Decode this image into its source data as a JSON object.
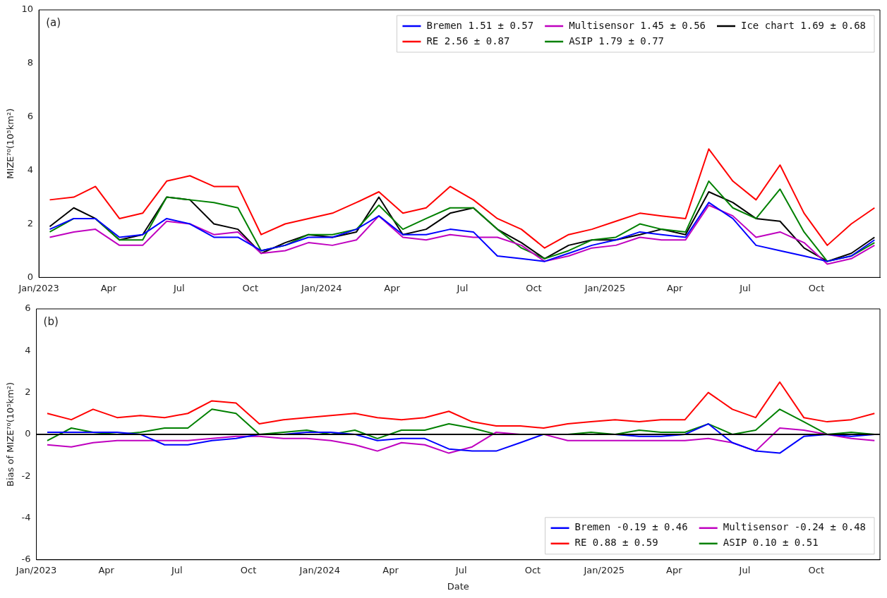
{
  "chart_data": [
    {
      "type": "line",
      "ylabel": "MIZE⁷⁰(10⁵km²)",
      "annotations": [
        "(a)"
      ],
      "legend": "top right",
      "marker": "none",
      "line_style": "solid",
      "grid": false,
      "x": [
        "2023-01-15",
        "2023-02-15",
        "2023-03-15",
        "2023-04-15",
        "2023-05-15",
        "2023-06-15",
        "2023-07-15",
        "2023-08-15",
        "2023-09-15",
        "2023-10-15",
        "2023-11-15",
        "2023-12-15",
        "2024-01-15",
        "2024-02-15",
        "2024-03-15",
        "2024-04-15",
        "2024-05-15",
        "2024-06-15",
        "2024-07-15",
        "2024-08-15",
        "2024-09-15",
        "2024-10-15",
        "2024-11-15",
        "2024-12-15",
        "2025-01-15",
        "2025-02-15",
        "2025-03-15",
        "2025-04-15",
        "2025-05-15",
        "2025-06-15",
        "2025-07-15",
        "2025-08-15",
        "2025-09-15",
        "2025-10-15",
        "2025-11-15",
        "2025-12-15"
      ],
      "xlim": [
        "2023-01-01",
        "2025-12-22"
      ],
      "xticks": [
        {
          "value": "2023-01-01",
          "label": "Jan/2023"
        },
        {
          "value": "2023-04-01",
          "label": "Apr"
        },
        {
          "value": "2023-07-01",
          "label": "Jul"
        },
        {
          "value": "2023-10-01",
          "label": "Oct"
        },
        {
          "value": "2024-01-01",
          "label": "Jan/2024"
        },
        {
          "value": "2024-04-01",
          "label": "Apr"
        },
        {
          "value": "2024-07-01",
          "label": "Jul"
        },
        {
          "value": "2024-10-01",
          "label": "Oct"
        },
        {
          "value": "2025-01-01",
          "label": "Jan/2025"
        },
        {
          "value": "2025-04-01",
          "label": "Apr"
        },
        {
          "value": "2025-07-01",
          "label": "Jul"
        },
        {
          "value": "2025-10-01",
          "label": "Oct"
        }
      ],
      "ylim": [
        0,
        10
      ],
      "yticks": [
        0,
        2,
        4,
        6,
        8,
        10
      ],
      "series": [
        {
          "name": "Bremen 1.51 ± 0.57",
          "color": "#0000ff",
          "values": [
            1.8,
            2.2,
            2.2,
            1.5,
            1.6,
            2.2,
            2.0,
            1.5,
            1.5,
            1.0,
            1.2,
            1.5,
            1.5,
            1.8,
            2.3,
            1.6,
            1.6,
            1.8,
            1.7,
            0.8,
            0.7,
            0.6,
            0.9,
            1.2,
            1.4,
            1.7,
            1.6,
            1.5,
            2.8,
            2.2,
            1.2,
            1.0,
            0.8,
            0.6,
            0.8,
            1.4
          ]
        },
        {
          "name": "RE 2.56 ± 0.87",
          "color": "#ff0000",
          "values": [
            2.9,
            3.0,
            3.4,
            2.2,
            2.4,
            3.6,
            3.8,
            3.4,
            3.4,
            1.6,
            2.0,
            2.2,
            2.4,
            2.8,
            3.2,
            2.4,
            2.6,
            3.4,
            2.9,
            2.2,
            1.8,
            1.1,
            1.6,
            1.8,
            2.1,
            2.4,
            2.3,
            2.2,
            4.8,
            3.6,
            2.9,
            4.2,
            2.4,
            1.2,
            2.0,
            2.6
          ]
        },
        {
          "name": "Multisensor 1.45 ± 0.56",
          "color": "#bf00bf",
          "values": [
            1.5,
            1.7,
            1.8,
            1.2,
            1.2,
            2.1,
            2.0,
            1.6,
            1.7,
            0.9,
            1.0,
            1.3,
            1.2,
            1.4,
            2.3,
            1.5,
            1.4,
            1.6,
            1.5,
            1.5,
            1.2,
            0.6,
            0.8,
            1.1,
            1.2,
            1.5,
            1.4,
            1.4,
            2.7,
            2.3,
            1.5,
            1.7,
            1.3,
            0.5,
            0.7,
            1.2
          ]
        },
        {
          "name": "ASIP 1.79 ± 0.77",
          "color": "#008000",
          "values": [
            1.7,
            2.2,
            2.2,
            1.4,
            1.4,
            3.0,
            2.9,
            2.8,
            2.6,
            1.0,
            1.2,
            1.6,
            1.6,
            1.8,
            2.7,
            1.8,
            2.2,
            2.6,
            2.6,
            1.8,
            1.1,
            0.7,
            1.0,
            1.4,
            1.5,
            2.0,
            1.8,
            1.7,
            3.6,
            2.6,
            2.2,
            3.3,
            1.7,
            0.6,
            0.8,
            1.3
          ]
        },
        {
          "name": "Ice chart 1.69 ± 0.68",
          "color": "#000000",
          "values": [
            1.9,
            2.6,
            2.2,
            1.4,
            1.6,
            3.0,
            2.9,
            2.0,
            1.8,
            0.9,
            1.3,
            1.6,
            1.5,
            1.7,
            3.0,
            1.6,
            1.8,
            2.4,
            2.6,
            1.8,
            1.3,
            0.7,
            1.2,
            1.4,
            1.4,
            1.6,
            1.8,
            1.6,
            3.2,
            2.8,
            2.2,
            2.1,
            1.1,
            0.6,
            0.9,
            1.5
          ]
        }
      ]
    },
    {
      "type": "line",
      "ylabel": "Bias of MIZE⁷⁰(10⁵km²)",
      "xlabel": "Date",
      "annotations": [
        "(b)"
      ],
      "legend": "bottom right",
      "marker": "none",
      "line_style": "solid",
      "grid": false,
      "x": [
        "2023-01-15",
        "2023-02-15",
        "2023-03-15",
        "2023-04-15",
        "2023-05-15",
        "2023-06-15",
        "2023-07-15",
        "2023-08-15",
        "2023-09-15",
        "2023-10-15",
        "2023-11-15",
        "2023-12-15",
        "2024-01-15",
        "2024-02-15",
        "2024-03-15",
        "2024-04-15",
        "2024-05-15",
        "2024-06-15",
        "2024-07-15",
        "2024-08-15",
        "2024-09-15",
        "2024-10-15",
        "2024-11-15",
        "2024-12-15",
        "2025-01-15",
        "2025-02-15",
        "2025-03-15",
        "2025-04-15",
        "2025-05-15",
        "2025-06-15",
        "2025-07-15",
        "2025-08-15",
        "2025-09-15",
        "2025-10-15",
        "2025-11-15",
        "2025-12-15"
      ],
      "xlim": [
        "2023-01-01",
        "2025-12-22"
      ],
      "xticks": [
        {
          "value": "2023-01-01",
          "label": "Jan/2023"
        },
        {
          "value": "2023-04-01",
          "label": "Apr"
        },
        {
          "value": "2023-07-01",
          "label": "Jul"
        },
        {
          "value": "2023-10-01",
          "label": "Oct"
        },
        {
          "value": "2024-01-01",
          "label": "Jan/2024"
        },
        {
          "value": "2024-04-01",
          "label": "Apr"
        },
        {
          "value": "2024-07-01",
          "label": "Jul"
        },
        {
          "value": "2024-10-01",
          "label": "Oct"
        },
        {
          "value": "2025-01-01",
          "label": "Jan/2025"
        },
        {
          "value": "2025-04-01",
          "label": "Apr"
        },
        {
          "value": "2025-07-01",
          "label": "Jul"
        },
        {
          "value": "2025-10-01",
          "label": "Oct"
        }
      ],
      "ylim": [
        -6,
        6
      ],
      "yticks": [
        -6,
        -4,
        -2,
        0,
        2,
        4,
        6
      ],
      "ref_lines": [
        {
          "axis": "y",
          "value": 0,
          "color": "#000000"
        }
      ],
      "series": [
        {
          "name": "Bremen -0.19 ± 0.46",
          "color": "#0000ff",
          "values": [
            0.1,
            0.1,
            0.1,
            0.1,
            0.0,
            -0.5,
            -0.5,
            -0.3,
            -0.2,
            0.0,
            0.0,
            0.1,
            0.1,
            0.0,
            -0.3,
            -0.2,
            -0.2,
            -0.7,
            -0.8,
            -0.8,
            -0.4,
            0.0,
            0.0,
            0.0,
            0.0,
            -0.1,
            -0.1,
            0.0,
            0.5,
            -0.4,
            -0.8,
            -0.9,
            -0.1,
            0.0,
            -0.1,
            0.0
          ]
        },
        {
          "name": "RE 0.88 ± 0.59",
          "color": "#ff0000",
          "values": [
            1.0,
            0.7,
            1.2,
            0.8,
            0.9,
            0.8,
            1.0,
            1.6,
            1.5,
            0.5,
            0.7,
            0.8,
            0.9,
            1.0,
            0.8,
            0.7,
            0.8,
            1.1,
            0.6,
            0.4,
            0.4,
            0.3,
            0.5,
            0.6,
            0.7,
            0.6,
            0.7,
            0.7,
            2.0,
            1.2,
            0.8,
            2.5,
            0.8,
            0.6,
            0.7,
            1.0
          ]
        },
        {
          "name": "Multisensor -0.24 ± 0.48",
          "color": "#bf00bf",
          "values": [
            -0.5,
            -0.6,
            -0.4,
            -0.3,
            -0.3,
            -0.3,
            -0.3,
            -0.2,
            -0.1,
            -0.1,
            -0.2,
            -0.2,
            -0.3,
            -0.5,
            -0.8,
            -0.4,
            -0.5,
            -0.9,
            -0.6,
            0.1,
            0.0,
            0.0,
            -0.3,
            -0.3,
            -0.3,
            -0.3,
            -0.3,
            -0.3,
            -0.2,
            -0.4,
            -0.8,
            0.3,
            0.2,
            0.0,
            -0.2,
            -0.3
          ]
        },
        {
          "name": "ASIP 0.10 ± 0.51",
          "color": "#008000",
          "values": [
            -0.3,
            0.3,
            0.1,
            0.0,
            0.1,
            0.3,
            0.3,
            1.2,
            1.0,
            0.0,
            0.1,
            0.2,
            0.0,
            0.2,
            -0.2,
            0.2,
            0.2,
            0.5,
            0.3,
            0.0,
            0.0,
            0.0,
            0.0,
            0.1,
            0.0,
            0.2,
            0.1,
            0.1,
            0.5,
            0.0,
            0.2,
            1.2,
            0.6,
            0.0,
            0.1,
            0.0
          ]
        }
      ]
    }
  ]
}
